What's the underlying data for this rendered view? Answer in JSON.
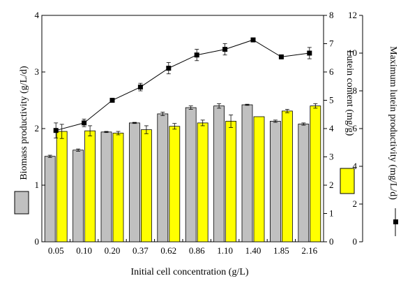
{
  "chart_data": {
    "type": "bar",
    "categories": [
      "0.05",
      "0.10",
      "0.20",
      "0.37",
      "0.62",
      "0.86",
      "1.10",
      "1.40",
      "1.85",
      "2.16"
    ],
    "xlabel": "Initial cell concentration (g/L)",
    "axes": {
      "left": {
        "label": "Biomass productivity (g/L/d)",
        "ylim": [
          0,
          4
        ],
        "ticks": [
          "0",
          "1",
          "2",
          "3",
          "4"
        ]
      },
      "right1": {
        "label": "Lutein content (mg/g)",
        "ylim": [
          0,
          8
        ],
        "ticks": [
          "0",
          "1",
          "2",
          "3",
          "4",
          "5",
          "6",
          "7",
          "8"
        ]
      },
      "right2": {
        "label": "Maximum lutein productivity (mg/L/d)",
        "ylim": [
          0,
          12
        ],
        "ticks": [
          "0",
          "2",
          "4",
          "6",
          "8",
          "10",
          "12"
        ]
      }
    },
    "series": [
      {
        "name": "Biomass productivity (g/L/d)",
        "kind": "bar",
        "axis": "left",
        "color": "#c0c0c0",
        "values": [
          1.51,
          1.62,
          1.94,
          2.1,
          2.26,
          2.37,
          2.4,
          2.42,
          2.13,
          2.08
        ],
        "errors": [
          0.02,
          0.02,
          0.01,
          0.01,
          0.03,
          0.03,
          0.04,
          0.01,
          0.02,
          0.02
        ]
      },
      {
        "name": "Lutein content (mg/g)",
        "kind": "bar",
        "axis": "right1",
        "color": "#ffff00",
        "values": [
          3.9,
          3.92,
          3.84,
          3.96,
          4.08,
          4.2,
          4.26,
          4.42,
          4.62,
          4.8
        ],
        "errors": [
          0.25,
          0.18,
          0.06,
          0.14,
          0.1,
          0.1,
          0.22,
          0.0,
          0.06,
          0.08
        ]
      },
      {
        "name": "Maximum lutein productivity (mg/L/d)",
        "kind": "line",
        "axis": "right2",
        "color": "#000000",
        "marker": "square",
        "values": [
          5.9,
          6.3,
          7.5,
          8.2,
          9.2,
          9.9,
          10.2,
          10.7,
          9.8,
          10.0
        ],
        "errors": [
          0.4,
          0.2,
          0.0,
          0.2,
          0.3,
          0.3,
          0.3,
          0.0,
          0.0,
          0.3
        ]
      }
    ]
  }
}
